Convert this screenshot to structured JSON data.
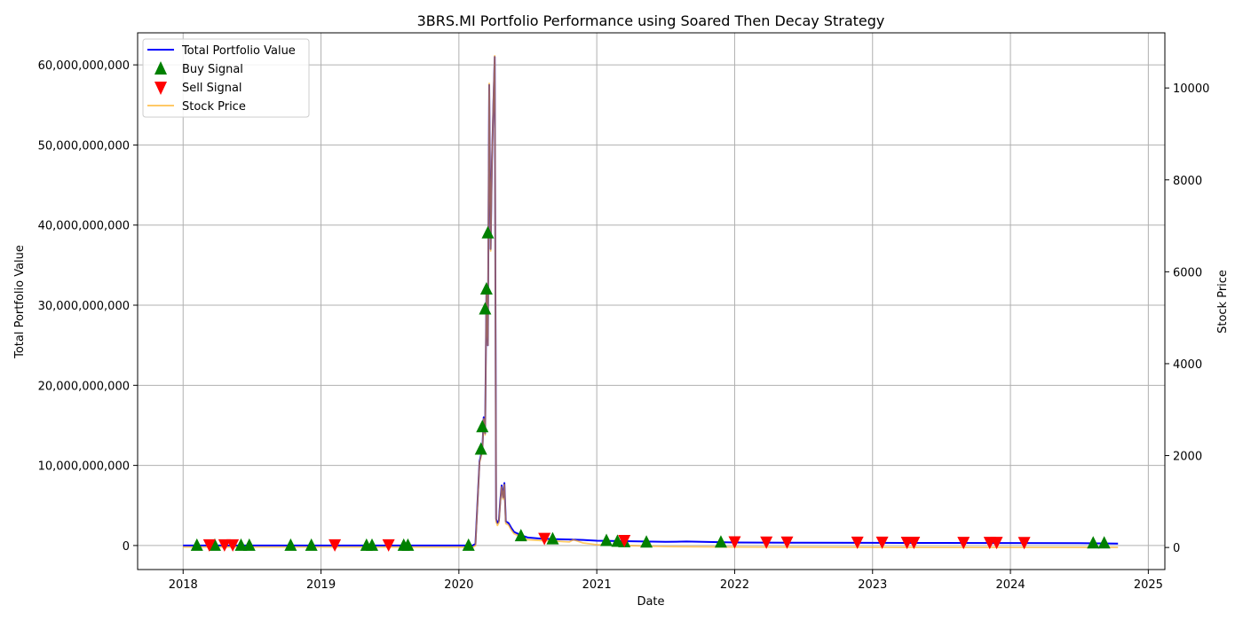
{
  "chart_data": {
    "type": "line",
    "title": "3BRS.MI Portfolio Performance using Soared Then Decay Strategy",
    "xlabel": "Date",
    "ylabel": "Total Portfolio Value",
    "ylabel_right": "Stock Price",
    "xlim": [
      2017.67,
      2025.12
    ],
    "ylim": [
      -3000000000,
      64000000000
    ],
    "ylim_right": [
      -480,
      11200
    ],
    "x_ticks": [
      2018,
      2019,
      2020,
      2021,
      2022,
      2023,
      2024,
      2025
    ],
    "x_tick_labels": [
      "2018",
      "2019",
      "2020",
      "2021",
      "2022",
      "2023",
      "2024",
      "2025"
    ],
    "y_ticks": [
      0,
      10000000000,
      20000000000,
      30000000000,
      40000000000,
      50000000000,
      60000000000
    ],
    "y_tick_labels": [
      "0",
      "10,000,000,000",
      "20,000,000,000",
      "30,000,000,000",
      "40,000,000,000",
      "50,000,000,000",
      "60,000,000,000"
    ],
    "y2_ticks": [
      0,
      2000,
      4000,
      6000,
      8000,
      10000
    ],
    "y2_tick_labels": [
      "0",
      "2000",
      "4000",
      "6000",
      "8000",
      "10000"
    ],
    "grid": true,
    "legend_position": "top-left",
    "legend": [
      {
        "label": "Total Portfolio Value",
        "kind": "line",
        "color": "#0000ff"
      },
      {
        "label": "Buy Signal",
        "kind": "marker-up",
        "color": "#008000"
      },
      {
        "label": "Sell Signal",
        "kind": "marker-down",
        "color": "#ff0000"
      },
      {
        "label": "Stock Price",
        "kind": "line",
        "color": "#ffa500"
      }
    ],
    "series": [
      {
        "name": "Total Portfolio Value",
        "axis": "left",
        "color": "#0000ff",
        "x": [
          2018.0,
          2019.0,
          2020.0,
          2020.05,
          2020.1,
          2020.12,
          2020.15,
          2020.17,
          2020.18,
          2020.19,
          2020.2,
          2020.21,
          2020.22,
          2020.23,
          2020.24,
          2020.25,
          2020.26,
          2020.27,
          2020.28,
          2020.29,
          2020.3,
          2020.31,
          2020.32,
          2020.33,
          2020.34,
          2020.36,
          2020.38,
          2020.4,
          2020.45,
          2020.5,
          2020.6,
          2020.7,
          2020.8,
          2020.9,
          2021.0,
          2021.5,
          2021.65,
          2022.0,
          2022.5,
          2023.0,
          2023.5,
          2024.0,
          2024.5,
          2024.78
        ],
        "values": [
          0,
          0,
          0,
          0,
          0,
          200000000,
          10500000000,
          12000000000,
          16000000000,
          14000000000,
          32000000000,
          25000000000,
          57500000000,
          37000000000,
          48000000000,
          55000000000,
          61000000000,
          3300000000,
          2800000000,
          3100000000,
          5500000000,
          7500000000,
          6000000000,
          7800000000,
          3000000000,
          2800000000,
          2200000000,
          1700000000,
          1300000000,
          1000000000,
          850000000,
          800000000,
          750000000,
          700000000,
          600000000,
          450000000,
          500000000,
          380000000,
          350000000,
          330000000,
          320000000,
          310000000,
          300000000,
          250000000
        ]
      },
      {
        "name": "Stock Price",
        "axis": "right",
        "color": "#ffa500",
        "x": [
          2018.0,
          2019.0,
          2020.0,
          2020.05,
          2020.1,
          2020.12,
          2020.15,
          2020.17,
          2020.18,
          2020.19,
          2020.2,
          2020.21,
          2020.22,
          2020.23,
          2020.24,
          2020.25,
          2020.26,
          2020.27,
          2020.28,
          2020.29,
          2020.3,
          2020.31,
          2020.32,
          2020.33,
          2020.34,
          2020.36,
          2020.38,
          2020.4,
          2020.45,
          2020.5,
          2020.6,
          2020.7,
          2020.8,
          2020.83,
          2020.9,
          2021.0,
          2021.5,
          2022.0,
          2023.0,
          2024.0,
          2024.78
        ],
        "values": [
          10,
          10,
          8,
          6,
          5,
          40,
          1850,
          2100,
          2800,
          2450,
          5600,
          4400,
          10100,
          6450,
          8400,
          9650,
          10700,
          560,
          480,
          540,
          960,
          1320,
          1050,
          1370,
          520,
          490,
          380,
          300,
          230,
          170,
          150,
          140,
          120,
          170,
          100,
          60,
          20,
          10,
          5,
          3,
          2
        ]
      }
    ],
    "buy_signals": {
      "x": [
        2018.1,
        2018.23,
        2018.42,
        2018.48,
        2018.78,
        2018.93,
        2019.33,
        2019.37,
        2019.6,
        2019.63,
        2020.07,
        2020.16,
        2020.17,
        2020.19,
        2020.2,
        2020.21,
        2020.45,
        2020.68,
        2021.07,
        2021.15,
        2021.2,
        2021.36,
        2021.9,
        2024.6,
        2024.68
      ],
      "values": [
        0,
        0,
        0,
        0,
        0,
        0,
        0,
        0,
        0,
        0,
        0,
        12000000000,
        14800000000,
        29500000000,
        32000000000,
        39000000000,
        1200000000,
        800000000,
        600000000,
        500000000,
        450000000,
        400000000,
        400000000,
        300000000,
        300000000
      ]
    },
    "sell_signals": {
      "x": [
        2018.19,
        2018.3,
        2018.36,
        2019.1,
        2019.49,
        2020.62,
        2021.2,
        2022.0,
        2022.23,
        2022.38,
        2022.89,
        2023.07,
        2023.25,
        2023.3,
        2023.66,
        2023.85,
        2023.9,
        2024.1
      ],
      "values": [
        0,
        0,
        0,
        0,
        0,
        800000000,
        550000000,
        380000000,
        350000000,
        350000000,
        330000000,
        330000000,
        320000000,
        320000000,
        310000000,
        310000000,
        310000000,
        300000000
      ]
    }
  }
}
